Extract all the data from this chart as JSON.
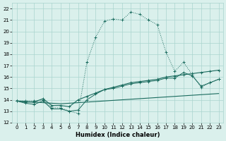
{
  "xlabel": "Humidex (Indice chaleur)",
  "xlim": [
    -0.5,
    23.5
  ],
  "ylim": [
    12,
    22.5
  ],
  "yticks": [
    12,
    13,
    14,
    15,
    16,
    17,
    18,
    19,
    20,
    21,
    22
  ],
  "xticks": [
    0,
    1,
    2,
    3,
    4,
    5,
    6,
    7,
    8,
    9,
    10,
    11,
    12,
    13,
    14,
    15,
    16,
    17,
    18,
    19,
    20,
    21,
    22,
    23
  ],
  "background_color": "#daf0ec",
  "grid_color": "#aad4ce",
  "line_color": "#1a6b5e",
  "series1_x": [
    0,
    1,
    2,
    3,
    4,
    5,
    6,
    7,
    8,
    9,
    10,
    11,
    12,
    13,
    14,
    15,
    16,
    17,
    18,
    19,
    20,
    21,
    22,
    23
  ],
  "series1_y": [
    13.9,
    13.9,
    13.9,
    14.0,
    13.3,
    13.3,
    13.0,
    12.8,
    17.3,
    19.5,
    20.9,
    21.1,
    21.0,
    21.7,
    21.5,
    21.0,
    20.6,
    18.2,
    16.5,
    17.3,
    16.2,
    15.1,
    15.5,
    15.8
  ],
  "series2_x": [
    0,
    1,
    2,
    3,
    4,
    5,
    6,
    7,
    8,
    9,
    10,
    11,
    12,
    13,
    14,
    15,
    16,
    17,
    18,
    19,
    20,
    21,
    22,
    23
  ],
  "series2_y": [
    13.9,
    13.7,
    13.6,
    13.9,
    13.2,
    13.2,
    13.0,
    13.1,
    14.0,
    14.5,
    14.9,
    15.0,
    15.2,
    15.4,
    15.5,
    15.6,
    15.7,
    15.9,
    15.9,
    16.4,
    16.1,
    15.2,
    15.5,
    15.8
  ],
  "series3_x": [
    0,
    1,
    2,
    3,
    4,
    5,
    6,
    7,
    8,
    9,
    10,
    11,
    12,
    13,
    14,
    15,
    16,
    17,
    18,
    19,
    20,
    21,
    22,
    23
  ],
  "series3_y": [
    13.9,
    13.8,
    13.8,
    14.1,
    13.5,
    13.5,
    13.4,
    14.0,
    14.3,
    14.6,
    14.9,
    15.1,
    15.3,
    15.5,
    15.6,
    15.7,
    15.8,
    16.0,
    16.1,
    16.2,
    16.3,
    16.4,
    16.5,
    16.6
  ],
  "series4_x": [
    0,
    1,
    2,
    3,
    4,
    5,
    6,
    7,
    8,
    9,
    10,
    11,
    12,
    13,
    14,
    15,
    16,
    17,
    18,
    19,
    20,
    21,
    22,
    23
  ],
  "series4_y": [
    13.9,
    13.85,
    13.8,
    13.75,
    13.7,
    13.65,
    13.7,
    13.75,
    13.8,
    13.85,
    13.9,
    13.95,
    14.0,
    14.05,
    14.1,
    14.15,
    14.2,
    14.25,
    14.3,
    14.35,
    14.4,
    14.45,
    14.5,
    14.55
  ]
}
